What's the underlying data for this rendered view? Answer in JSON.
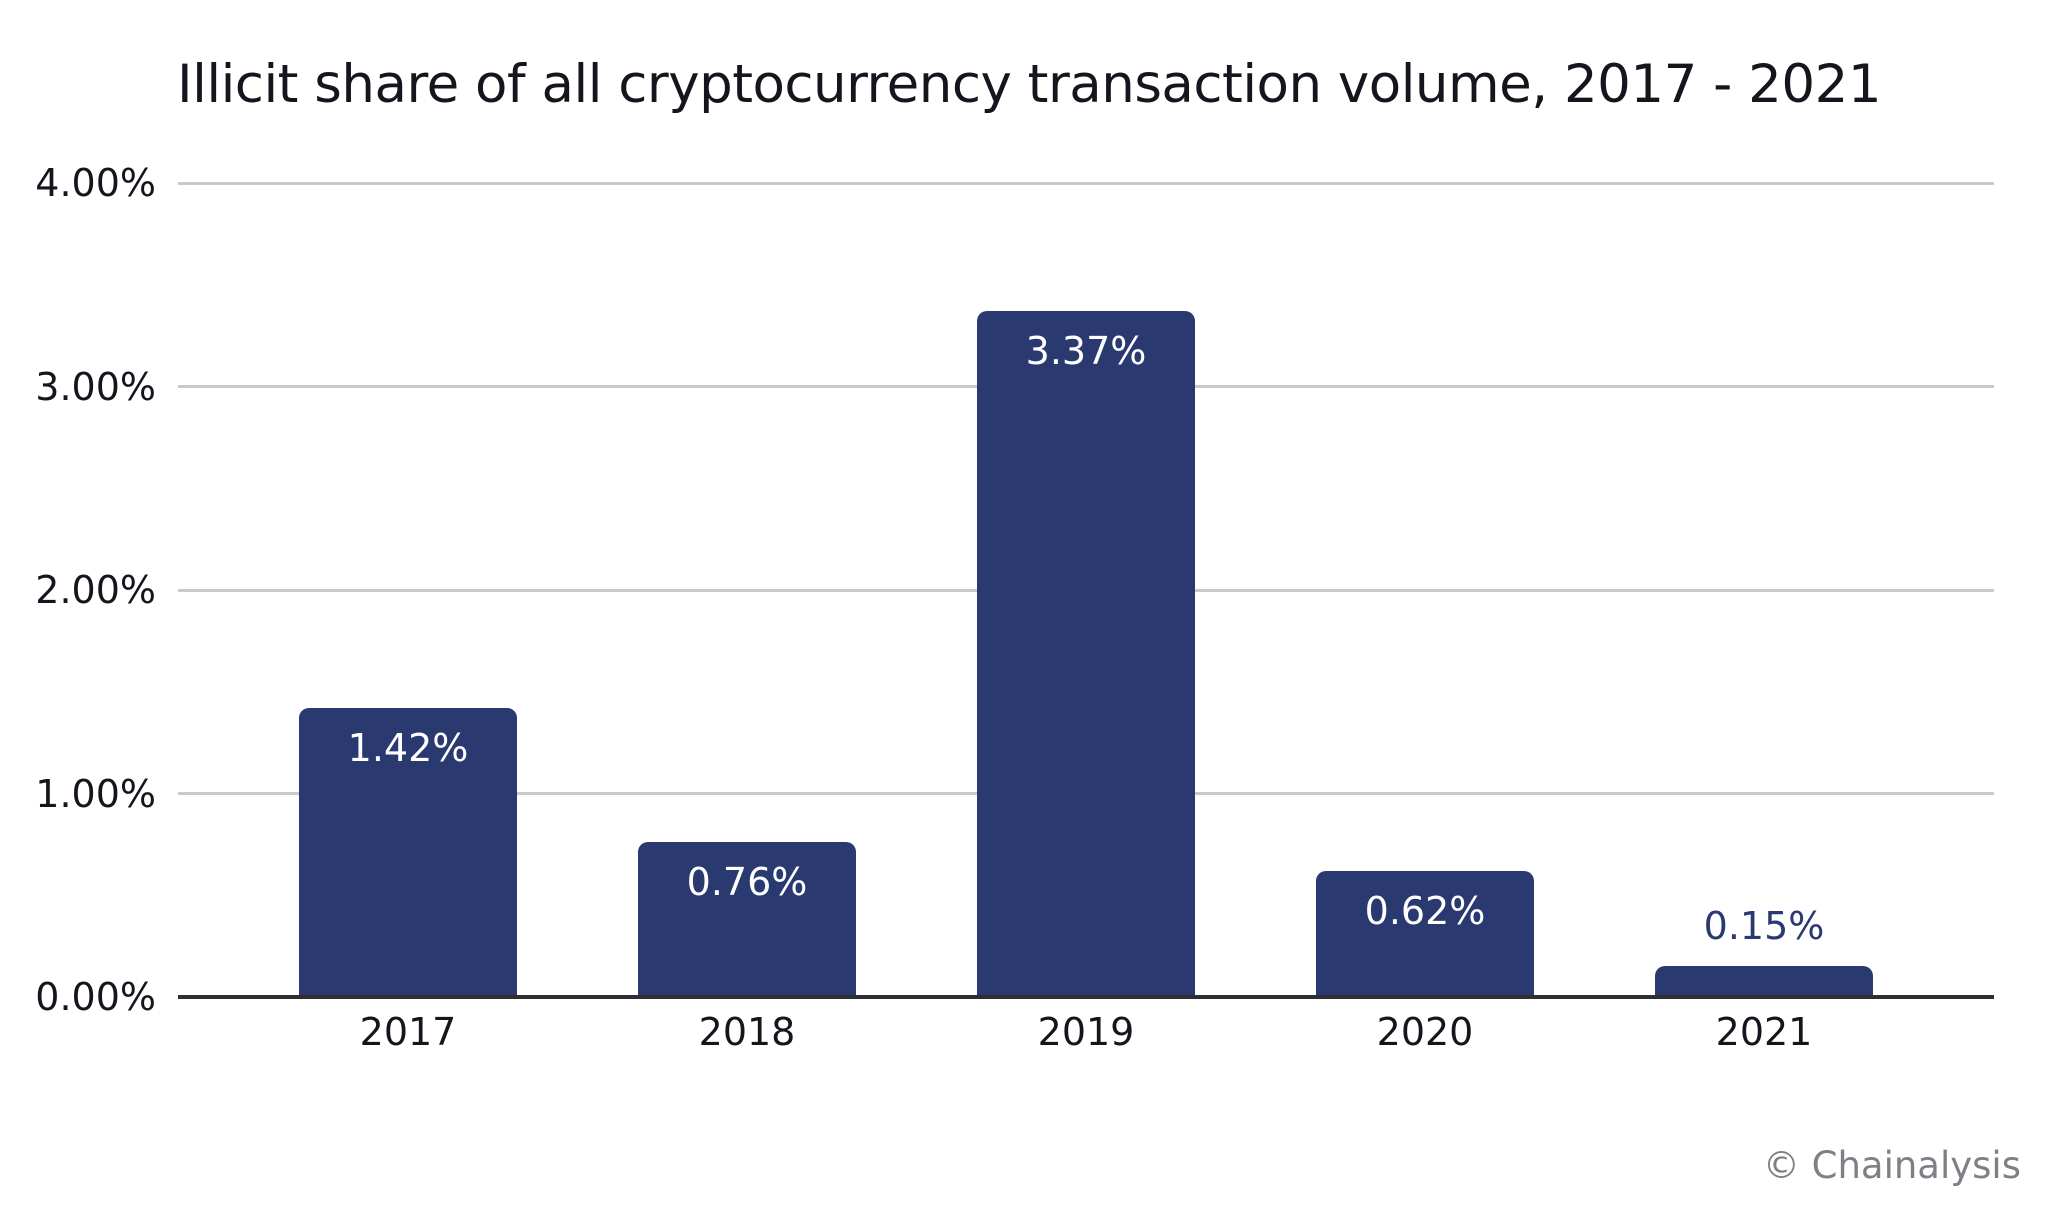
{
  "attribution": "© Chainalysis",
  "chart_data": {
    "type": "bar",
    "title": "Illicit share of all cryptocurrency transaction volume, 2017 - 2021",
    "categories": [
      "2017",
      "2018",
      "2019",
      "2020",
      "2021"
    ],
    "values": [
      1.42,
      0.76,
      3.37,
      0.62,
      0.15
    ],
    "value_labels": [
      "1.42%",
      "0.76%",
      "3.37%",
      "0.62%",
      "0.15%"
    ],
    "xlabel": "",
    "ylabel": "",
    "ylim": [
      0,
      4
    ],
    "y_ticks": [
      {
        "value": 4,
        "label": "4.00%"
      },
      {
        "value": 3,
        "label": "3.00%"
      },
      {
        "value": 2,
        "label": "2.00%"
      },
      {
        "value": 1,
        "label": "1.00%"
      },
      {
        "value": 0,
        "label": "0.00%"
      }
    ],
    "grid": "horizontal",
    "legend": "none",
    "colors": {
      "bar": "#2a3a71",
      "label_inside": "#ffffff",
      "label_outside": "#2a3a71",
      "gridline": "#c9c9c9",
      "axis_line": "#2f2f33",
      "text": "#15151d",
      "attribution": "#7f7f85"
    }
  }
}
